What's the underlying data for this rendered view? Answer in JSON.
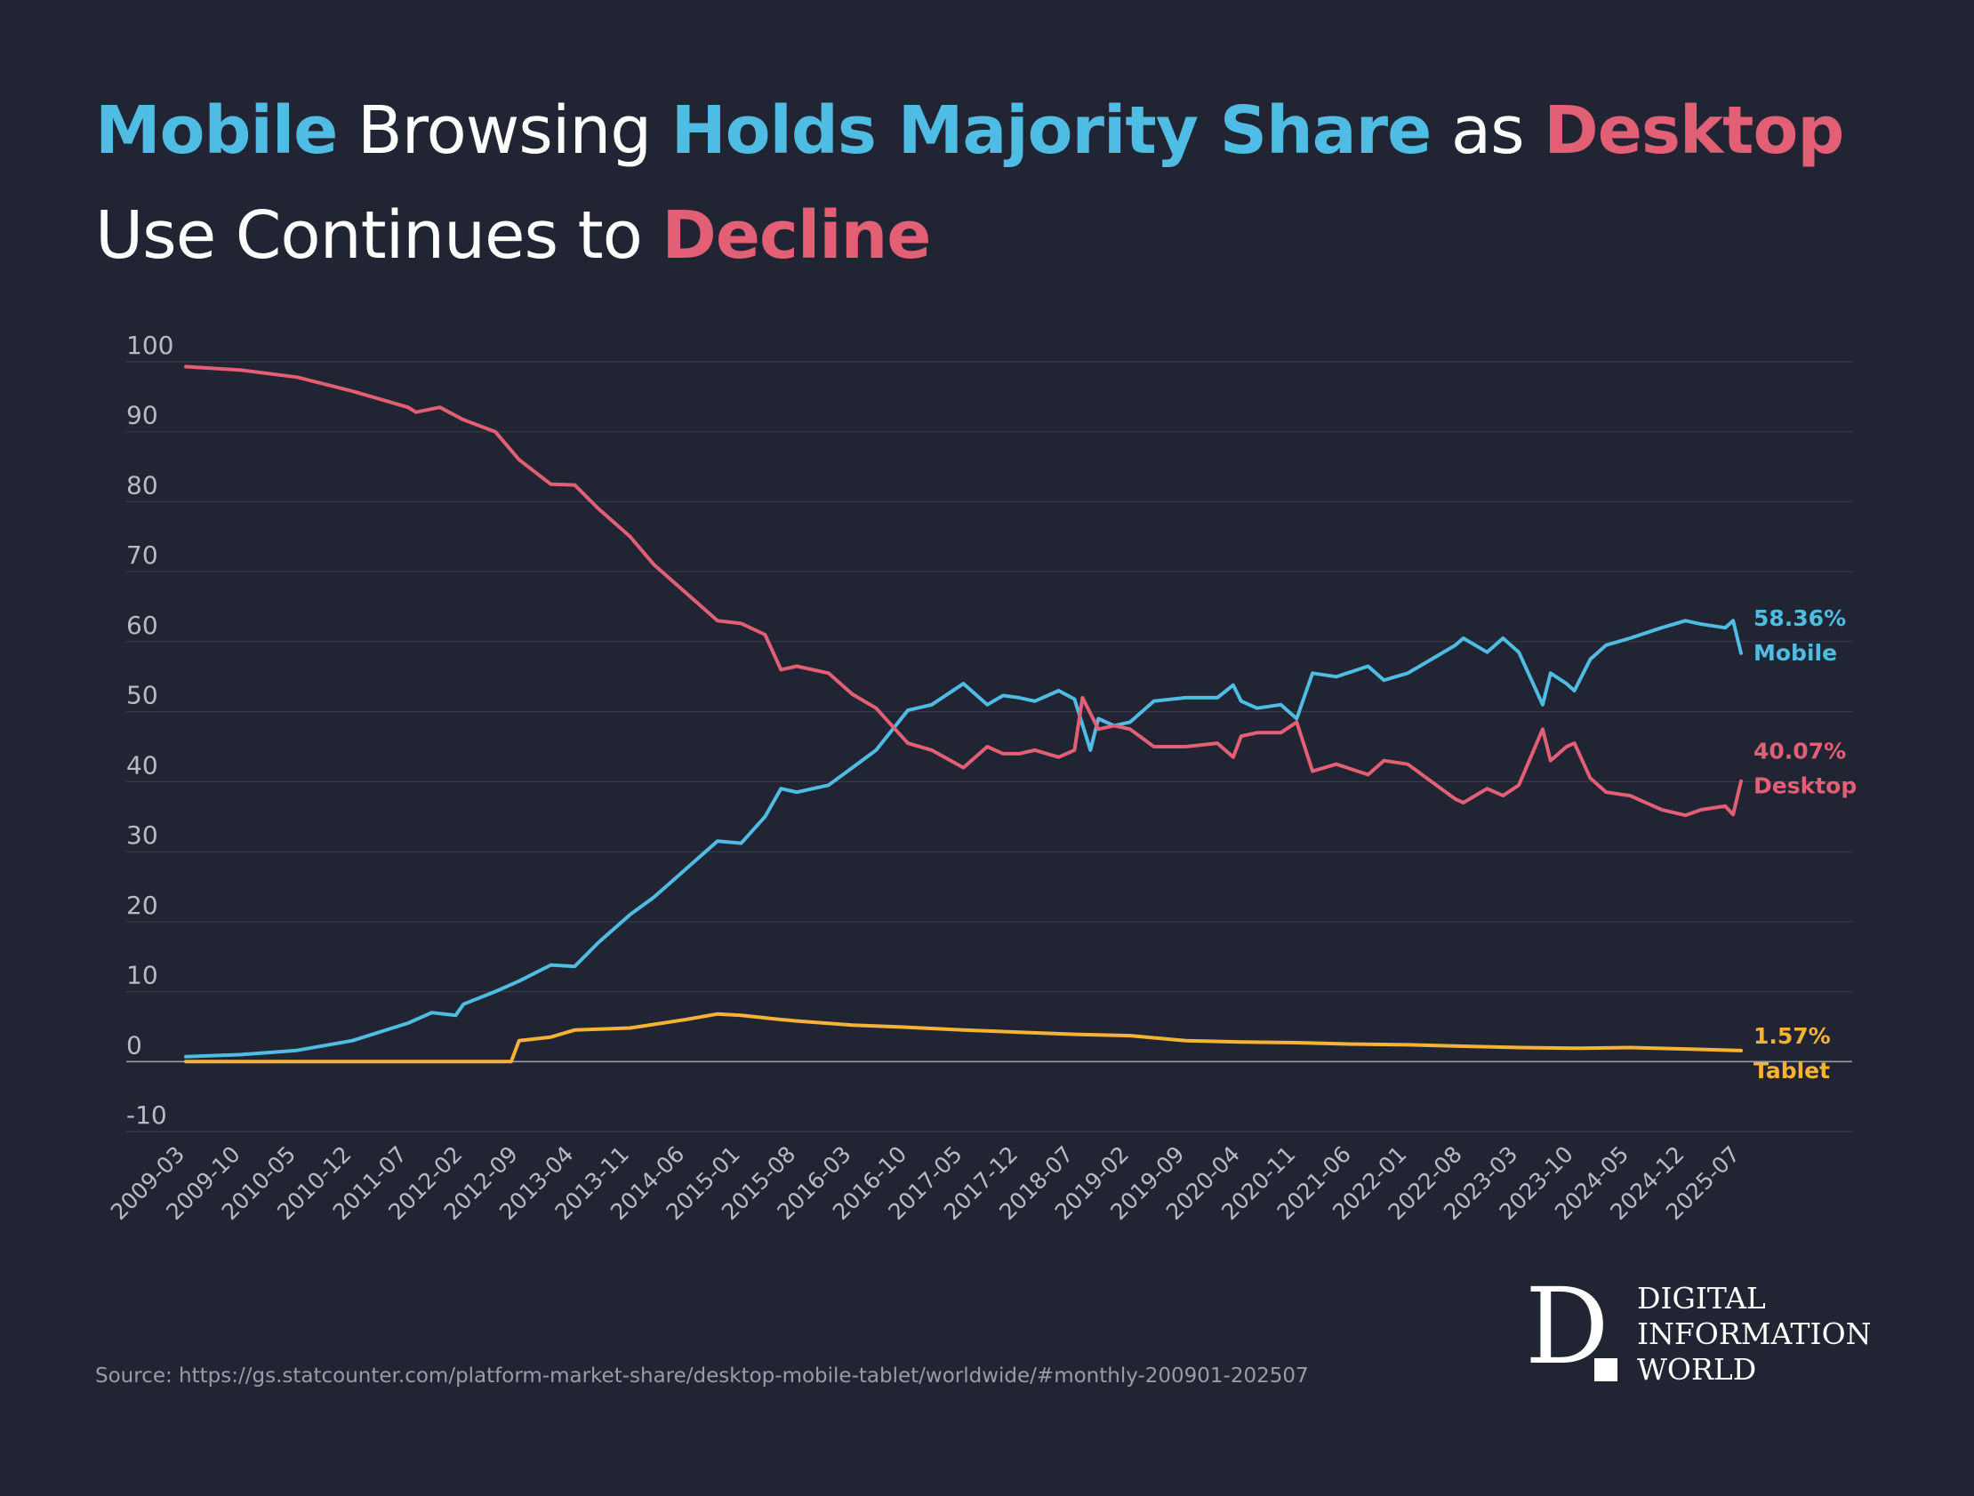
{
  "title": {
    "line1": [
      "Mobile",
      " Browsing ",
      "Holds Majority Share",
      " as ",
      "Desktop"
    ],
    "line2": [
      "Use Continues to ",
      "Decline"
    ]
  },
  "source": "Source: https://gs.statcounter.com/platform-market-share/desktop-mobile-tablet/worldwide/#monthly-200901-202507",
  "logo": {
    "mark": "D",
    "lines": [
      "DIGITAL",
      "INFORMATION",
      "WORLD"
    ]
  },
  "colors": {
    "background": "#212432",
    "mobile": "#4fbce3",
    "desktop": "#e25f76",
    "tablet": "#f5b335",
    "grid": "#3a3e4d",
    "zero_line": "#9a9ca6",
    "tick_text": "#b9bbc4"
  },
  "chart_data": {
    "type": "line",
    "title": "Mobile Browsing Holds Majority Share as Desktop Use Continues to Decline",
    "xlabel": "",
    "ylabel": "",
    "ylim": [
      -10,
      100
    ],
    "y_ticks": [
      100,
      90,
      80,
      70,
      60,
      50,
      40,
      30,
      20,
      10,
      0,
      -10
    ],
    "grid": true,
    "x_start": "2009-03",
    "x_end": "2025-07",
    "x_tick_labels": [
      "2009-03",
      "2009-10",
      "2010-05",
      "2010-12",
      "2011-07",
      "2012-02",
      "2012-09",
      "2013-04",
      "2013-11",
      "2014-06",
      "2015-01",
      "2015-08",
      "2016-03",
      "2016-10",
      "2017-05",
      "2017-12",
      "2018-07",
      "2019-02",
      "2019-09",
      "2020-04",
      "2020-11",
      "2021-06",
      "2022-01",
      "2022-08",
      "2023-03",
      "2023-10",
      "2024-05",
      "2024-12",
      "2025-07"
    ],
    "series": [
      {
        "name": "Mobile",
        "label": "Mobile",
        "end_label": "58.36%",
        "color": "#4fbce3",
        "points": [
          [
            "2009-03",
            0.7
          ],
          [
            "2009-10",
            1.0
          ],
          [
            "2010-05",
            1.6
          ],
          [
            "2010-12",
            3.0
          ],
          [
            "2011-07",
            5.5
          ],
          [
            "2011-10",
            7.0
          ],
          [
            "2012-01",
            6.6
          ],
          [
            "2012-02",
            8.2
          ],
          [
            "2012-06",
            10.0
          ],
          [
            "2012-09",
            11.5
          ],
          [
            "2013-01",
            13.8
          ],
          [
            "2013-04",
            13.6
          ],
          [
            "2013-07",
            17.0
          ],
          [
            "2013-11",
            21.0
          ],
          [
            "2014-02",
            23.5
          ],
          [
            "2014-06",
            27.5
          ],
          [
            "2014-10",
            31.5
          ],
          [
            "2015-01",
            31.2
          ],
          [
            "2015-04",
            35.0
          ],
          [
            "2015-06",
            39.0
          ],
          [
            "2015-08",
            38.5
          ],
          [
            "2015-12",
            39.5
          ],
          [
            "2016-03",
            42.0
          ],
          [
            "2016-06",
            44.5
          ],
          [
            "2016-10",
            50.2
          ],
          [
            "2017-01",
            51.0
          ],
          [
            "2017-05",
            54.0
          ],
          [
            "2017-08",
            51.0
          ],
          [
            "2017-10",
            52.3
          ],
          [
            "2017-12",
            52.0
          ],
          [
            "2018-02",
            51.5
          ],
          [
            "2018-05",
            53.0
          ],
          [
            "2018-07",
            51.8
          ],
          [
            "2018-09",
            44.5
          ],
          [
            "2018-10",
            49.0
          ],
          [
            "2018-12",
            48.0
          ],
          [
            "2019-02",
            48.5
          ],
          [
            "2019-05",
            51.5
          ],
          [
            "2019-09",
            52.0
          ],
          [
            "2020-01",
            52.0
          ],
          [
            "2020-03",
            53.8
          ],
          [
            "2020-04",
            51.5
          ],
          [
            "2020-06",
            50.5
          ],
          [
            "2020-09",
            51.0
          ],
          [
            "2020-11",
            49.0
          ],
          [
            "2021-01",
            55.5
          ],
          [
            "2021-04",
            55.0
          ],
          [
            "2021-08",
            56.5
          ],
          [
            "2021-10",
            54.5
          ],
          [
            "2022-01",
            55.5
          ],
          [
            "2022-04",
            57.5
          ],
          [
            "2022-07",
            59.5
          ],
          [
            "2022-08",
            60.5
          ],
          [
            "2022-11",
            58.5
          ],
          [
            "2023-01",
            60.5
          ],
          [
            "2023-03",
            58.5
          ],
          [
            "2023-06",
            51.0
          ],
          [
            "2023-07",
            55.5
          ],
          [
            "2023-09",
            54.0
          ],
          [
            "2023-10",
            53.0
          ],
          [
            "2023-12",
            57.5
          ],
          [
            "2024-02",
            59.5
          ],
          [
            "2024-05",
            60.5
          ],
          [
            "2024-09",
            62.0
          ],
          [
            "2024-12",
            63.0
          ],
          [
            "2025-02",
            62.5
          ],
          [
            "2025-05",
            62.0
          ],
          [
            "2025-06",
            63.0
          ],
          [
            "2025-07",
            58.36
          ]
        ]
      },
      {
        "name": "Desktop",
        "label": "Desktop",
        "end_label": "40.07%",
        "color": "#e25f76",
        "points": [
          [
            "2009-03",
            99.3
          ],
          [
            "2009-10",
            98.8
          ],
          [
            "2010-05",
            97.8
          ],
          [
            "2010-12",
            95.8
          ],
          [
            "2011-07",
            93.5
          ],
          [
            "2011-08",
            92.8
          ],
          [
            "2011-11",
            93.5
          ],
          [
            "2012-02",
            91.7
          ],
          [
            "2012-06",
            90.0
          ],
          [
            "2012-09",
            86.0
          ],
          [
            "2013-01",
            82.5
          ],
          [
            "2013-04",
            82.4
          ],
          [
            "2013-07",
            79.0
          ],
          [
            "2013-11",
            75.0
          ],
          [
            "2014-02",
            71.0
          ],
          [
            "2014-06",
            67.0
          ],
          [
            "2014-10",
            63.0
          ],
          [
            "2015-01",
            62.6
          ],
          [
            "2015-04",
            61.0
          ],
          [
            "2015-06",
            56.0
          ],
          [
            "2015-08",
            56.5
          ],
          [
            "2015-12",
            55.5
          ],
          [
            "2016-03",
            52.5
          ],
          [
            "2016-06",
            50.5
          ],
          [
            "2016-10",
            45.5
          ],
          [
            "2017-01",
            44.5
          ],
          [
            "2017-05",
            42.0
          ],
          [
            "2017-08",
            45.0
          ],
          [
            "2017-10",
            44.0
          ],
          [
            "2017-12",
            44.0
          ],
          [
            "2018-02",
            44.5
          ],
          [
            "2018-05",
            43.5
          ],
          [
            "2018-07",
            44.5
          ],
          [
            "2018-08",
            52.0
          ],
          [
            "2018-10",
            47.5
          ],
          [
            "2018-12",
            48.0
          ],
          [
            "2019-02",
            47.5
          ],
          [
            "2019-05",
            45.0
          ],
          [
            "2019-09",
            45.0
          ],
          [
            "2020-01",
            45.5
          ],
          [
            "2020-03",
            43.5
          ],
          [
            "2020-04",
            46.5
          ],
          [
            "2020-06",
            47.0
          ],
          [
            "2020-09",
            47.0
          ],
          [
            "2020-11",
            48.5
          ],
          [
            "2021-01",
            41.5
          ],
          [
            "2021-04",
            42.5
          ],
          [
            "2021-08",
            41.0
          ],
          [
            "2021-10",
            43.0
          ],
          [
            "2022-01",
            42.5
          ],
          [
            "2022-04",
            40.0
          ],
          [
            "2022-07",
            37.5
          ],
          [
            "2022-08",
            37.0
          ],
          [
            "2022-11",
            39.0
          ],
          [
            "2023-01",
            38.0
          ],
          [
            "2023-03",
            39.5
          ],
          [
            "2023-06",
            47.5
          ],
          [
            "2023-07",
            43.0
          ],
          [
            "2023-09",
            45.0
          ],
          [
            "2023-10",
            45.5
          ],
          [
            "2023-12",
            40.5
          ],
          [
            "2024-02",
            38.5
          ],
          [
            "2024-05",
            38.0
          ],
          [
            "2024-09",
            36.0
          ],
          [
            "2024-12",
            35.2
          ],
          [
            "2025-02",
            36.0
          ],
          [
            "2025-05",
            36.5
          ],
          [
            "2025-06",
            35.3
          ],
          [
            "2025-07",
            40.07
          ]
        ]
      },
      {
        "name": "Tablet",
        "label": "Tablet",
        "end_label": "1.57%",
        "color": "#f5b335",
        "points": [
          [
            "2009-03",
            0.0
          ],
          [
            "2012-08",
            0.0
          ],
          [
            "2012-09",
            3.0
          ],
          [
            "2013-01",
            3.5
          ],
          [
            "2013-04",
            4.5
          ],
          [
            "2013-11",
            4.8
          ],
          [
            "2014-06",
            6.0
          ],
          [
            "2014-10",
            6.8
          ],
          [
            "2015-01",
            6.6
          ],
          [
            "2015-06",
            6.0
          ],
          [
            "2015-08",
            5.8
          ],
          [
            "2016-03",
            5.2
          ],
          [
            "2016-10",
            4.9
          ],
          [
            "2017-05",
            4.5
          ],
          [
            "2017-12",
            4.2
          ],
          [
            "2018-07",
            3.9
          ],
          [
            "2019-02",
            3.7
          ],
          [
            "2019-09",
            3.0
          ],
          [
            "2020-04",
            2.8
          ],
          [
            "2020-11",
            2.7
          ],
          [
            "2021-06",
            2.5
          ],
          [
            "2022-01",
            2.4
          ],
          [
            "2022-08",
            2.2
          ],
          [
            "2023-03",
            2.0
          ],
          [
            "2023-10",
            1.9
          ],
          [
            "2024-05",
            2.0
          ],
          [
            "2024-12",
            1.8
          ],
          [
            "2025-07",
            1.57
          ]
        ]
      }
    ]
  }
}
